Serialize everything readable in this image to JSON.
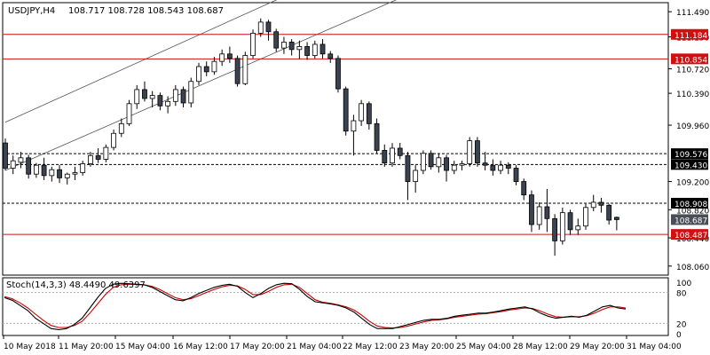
{
  "header": {
    "symbol": "USDJPY,H4",
    "ohlc": "108.717 108.728 108.543 108.687"
  },
  "colors": {
    "background": "#ffffff",
    "axis": "#000000",
    "bull_candle": "#ffffff",
    "bear_candle": "#3c4350",
    "resistance_line": "#d01010",
    "level_label_red": "#d01010",
    "level_label_black": "#000000",
    "current_price_label": "#4a4f57",
    "channel": "#555555",
    "stoch_main": "#000000",
    "stoch_signal": "#cc0000"
  },
  "main_axis": {
    "ticks": [
      "111.490",
      "111.150",
      "110.720",
      "110.390",
      "109.960",
      "109.200",
      "108.820",
      "108.440",
      "108.060"
    ]
  },
  "levels": {
    "red": [
      {
        "label": "111.184",
        "value": 111.184
      },
      {
        "label": "110.854",
        "value": 110.854
      },
      {
        "label": "108.487",
        "value": 108.487
      }
    ],
    "dashed": [
      {
        "label": "109.576",
        "value": 109.576
      },
      {
        "label": "109.430",
        "value": 109.43
      },
      {
        "label": "108.908",
        "value": 108.908
      }
    ],
    "current": {
      "label": "108.687",
      "value": 108.687
    }
  },
  "stoch": {
    "title": "Stoch(14,3,3) 48.4490 49.6397",
    "ticks": [
      "100",
      "80",
      "20",
      "0"
    ],
    "levels": [
      80,
      20
    ]
  },
  "time_axis": {
    "labels": [
      "10 May 2018",
      "11 May 20:00",
      "15 May 04:00",
      "16 May 12:00",
      "17 May 20:00",
      "21 May 04:00",
      "22 May 12:00",
      "23 May 20:00",
      "25 May 04:00",
      "28 May 12:00",
      "29 May 20:00",
      "31 May 04:00"
    ]
  },
  "chart_data": {
    "type": "candlestick",
    "symbol": "USDJPY",
    "timeframe": "H4",
    "ylim": [
      107.95,
      111.6
    ],
    "candles": [
      {
        "o": 109.72,
        "h": 109.78,
        "l": 109.35,
        "c": 109.38
      },
      {
        "o": 109.38,
        "h": 109.55,
        "l": 109.3,
        "c": 109.48
      },
      {
        "o": 109.46,
        "h": 109.6,
        "l": 109.38,
        "c": 109.52
      },
      {
        "o": 109.52,
        "h": 109.56,
        "l": 109.24,
        "c": 109.3
      },
      {
        "o": 109.3,
        "h": 109.45,
        "l": 109.25,
        "c": 109.42
      },
      {
        "o": 109.42,
        "h": 109.52,
        "l": 109.22,
        "c": 109.28
      },
      {
        "o": 109.28,
        "h": 109.4,
        "l": 109.2,
        "c": 109.36
      },
      {
        "o": 109.36,
        "h": 109.42,
        "l": 109.18,
        "c": 109.25
      },
      {
        "o": 109.25,
        "h": 109.32,
        "l": 109.16,
        "c": 109.3
      },
      {
        "o": 109.3,
        "h": 109.4,
        "l": 109.22,
        "c": 109.32
      },
      {
        "o": 109.32,
        "h": 109.48,
        "l": 109.28,
        "c": 109.44
      },
      {
        "o": 109.44,
        "h": 109.6,
        "l": 109.4,
        "c": 109.55
      },
      {
        "o": 109.55,
        "h": 109.65,
        "l": 109.45,
        "c": 109.5
      },
      {
        "o": 109.5,
        "h": 109.7,
        "l": 109.46,
        "c": 109.66
      },
      {
        "o": 109.66,
        "h": 109.9,
        "l": 109.62,
        "c": 109.85
      },
      {
        "o": 109.85,
        "h": 110.05,
        "l": 109.8,
        "c": 109.98
      },
      {
        "o": 109.98,
        "h": 110.3,
        "l": 109.95,
        "c": 110.25
      },
      {
        "o": 110.25,
        "h": 110.5,
        "l": 110.18,
        "c": 110.44
      },
      {
        "o": 110.44,
        "h": 110.55,
        "l": 110.28,
        "c": 110.32
      },
      {
        "o": 110.32,
        "h": 110.42,
        "l": 110.2,
        "c": 110.36
      },
      {
        "o": 110.36,
        "h": 110.4,
        "l": 110.16,
        "c": 110.22
      },
      {
        "o": 110.22,
        "h": 110.35,
        "l": 110.12,
        "c": 110.28
      },
      {
        "o": 110.28,
        "h": 110.5,
        "l": 110.22,
        "c": 110.44
      },
      {
        "o": 110.44,
        "h": 110.48,
        "l": 110.2,
        "c": 110.26
      },
      {
        "o": 110.26,
        "h": 110.6,
        "l": 110.2,
        "c": 110.55
      },
      {
        "o": 110.55,
        "h": 110.8,
        "l": 110.5,
        "c": 110.75
      },
      {
        "o": 110.75,
        "h": 110.82,
        "l": 110.62,
        "c": 110.68
      },
      {
        "o": 110.68,
        "h": 110.88,
        "l": 110.64,
        "c": 110.82
      },
      {
        "o": 110.82,
        "h": 110.98,
        "l": 110.76,
        "c": 110.92
      },
      {
        "o": 110.92,
        "h": 111.02,
        "l": 110.8,
        "c": 110.86
      },
      {
        "o": 110.86,
        "h": 110.9,
        "l": 110.48,
        "c": 110.52
      },
      {
        "o": 110.52,
        "h": 110.95,
        "l": 110.5,
        "c": 110.9
      },
      {
        "o": 110.9,
        "h": 111.25,
        "l": 110.86,
        "c": 111.2
      },
      {
        "o": 111.2,
        "h": 111.4,
        "l": 111.15,
        "c": 111.35
      },
      {
        "o": 111.35,
        "h": 111.38,
        "l": 111.1,
        "c": 111.22
      },
      {
        "o": 111.22,
        "h": 111.26,
        "l": 110.95,
        "c": 111.0
      },
      {
        "o": 111.0,
        "h": 111.15,
        "l": 110.92,
        "c": 111.08
      },
      {
        "o": 111.08,
        "h": 111.12,
        "l": 110.9,
        "c": 110.98
      },
      {
        "o": 110.98,
        "h": 111.1,
        "l": 110.85,
        "c": 111.02
      },
      {
        "o": 111.02,
        "h": 111.08,
        "l": 110.84,
        "c": 110.9
      },
      {
        "o": 110.9,
        "h": 111.1,
        "l": 110.86,
        "c": 111.05
      },
      {
        "o": 111.05,
        "h": 111.12,
        "l": 110.86,
        "c": 110.92
      },
      {
        "o": 110.92,
        "h": 110.96,
        "l": 110.8,
        "c": 110.86
      },
      {
        "o": 110.86,
        "h": 110.9,
        "l": 110.4,
        "c": 110.45
      },
      {
        "o": 110.45,
        "h": 110.48,
        "l": 109.82,
        "c": 109.88
      },
      {
        "o": 109.88,
        "h": 110.1,
        "l": 109.55,
        "c": 110.02
      },
      {
        "o": 110.02,
        "h": 110.3,
        "l": 109.95,
        "c": 110.25
      },
      {
        "o": 110.25,
        "h": 110.28,
        "l": 109.9,
        "c": 109.98
      },
      {
        "o": 109.98,
        "h": 110.05,
        "l": 109.58,
        "c": 109.62
      },
      {
        "o": 109.62,
        "h": 109.7,
        "l": 109.4,
        "c": 109.45
      },
      {
        "o": 109.45,
        "h": 109.72,
        "l": 109.4,
        "c": 109.65
      },
      {
        "o": 109.65,
        "h": 109.72,
        "l": 109.5,
        "c": 109.55
      },
      {
        "o": 109.55,
        "h": 109.6,
        "l": 108.95,
        "c": 109.2
      },
      {
        "o": 109.2,
        "h": 109.42,
        "l": 109.05,
        "c": 109.35
      },
      {
        "o": 109.35,
        "h": 109.62,
        "l": 109.3,
        "c": 109.58
      },
      {
        "o": 109.58,
        "h": 109.62,
        "l": 109.36,
        "c": 109.4
      },
      {
        "o": 109.4,
        "h": 109.58,
        "l": 109.32,
        "c": 109.52
      },
      {
        "o": 109.52,
        "h": 109.56,
        "l": 109.2,
        "c": 109.35
      },
      {
        "o": 109.35,
        "h": 109.48,
        "l": 109.3,
        "c": 109.42
      },
      {
        "o": 109.42,
        "h": 109.48,
        "l": 109.35,
        "c": 109.44
      },
      {
        "o": 109.44,
        "h": 109.8,
        "l": 109.4,
        "c": 109.75
      },
      {
        "o": 109.75,
        "h": 109.8,
        "l": 109.4,
        "c": 109.45
      },
      {
        "o": 109.45,
        "h": 109.6,
        "l": 109.35,
        "c": 109.42
      },
      {
        "o": 109.42,
        "h": 109.5,
        "l": 109.28,
        "c": 109.35
      },
      {
        "o": 109.35,
        "h": 109.48,
        "l": 109.3,
        "c": 109.42
      },
      {
        "o": 109.42,
        "h": 109.46,
        "l": 109.3,
        "c": 109.38
      },
      {
        "o": 109.38,
        "h": 109.42,
        "l": 109.15,
        "c": 109.2
      },
      {
        "o": 109.2,
        "h": 109.24,
        "l": 108.95,
        "c": 109.02
      },
      {
        "o": 109.02,
        "h": 109.08,
        "l": 108.52,
        "c": 108.62
      },
      {
        "o": 108.62,
        "h": 108.92,
        "l": 108.55,
        "c": 108.86
      },
      {
        "o": 108.86,
        "h": 109.1,
        "l": 108.52,
        "c": 108.7
      },
      {
        "o": 108.7,
        "h": 108.76,
        "l": 108.2,
        "c": 108.4
      },
      {
        "o": 108.4,
        "h": 108.85,
        "l": 108.35,
        "c": 108.78
      },
      {
        "o": 108.78,
        "h": 108.82,
        "l": 108.48,
        "c": 108.55
      },
      {
        "o": 108.55,
        "h": 108.7,
        "l": 108.48,
        "c": 108.6
      },
      {
        "o": 108.6,
        "h": 108.9,
        "l": 108.55,
        "c": 108.85
      },
      {
        "o": 108.85,
        "h": 109.02,
        "l": 108.8,
        "c": 108.92
      },
      {
        "o": 108.92,
        "h": 108.98,
        "l": 108.78,
        "c": 108.88
      },
      {
        "o": 108.88,
        "h": 108.9,
        "l": 108.62,
        "c": 108.68
      },
      {
        "o": 108.717,
        "h": 108.728,
        "l": 108.543,
        "c": 108.687
      }
    ],
    "channel": {
      "upper": [
        {
          "i": 0,
          "p": 110.0
        },
        {
          "i": 68,
          "p": 113.2
        }
      ],
      "lower": [
        {
          "i": 0,
          "p": 109.35
        },
        {
          "i": 56,
          "p": 111.9
        }
      ]
    },
    "stochastic": {
      "main": [
        70,
        65,
        55,
        45,
        30,
        20,
        10,
        8,
        10,
        18,
        30,
        50,
        70,
        88,
        96,
        98,
        97,
        96,
        95,
        90,
        82,
        74,
        66,
        64,
        70,
        78,
        84,
        90,
        94,
        96,
        92,
        80,
        70,
        78,
        88,
        95,
        98,
        97,
        86,
        72,
        62,
        60,
        58,
        55,
        50,
        42,
        30,
        18,
        10,
        10,
        10,
        14,
        18,
        22,
        26,
        28,
        28,
        30,
        34,
        36,
        38,
        40,
        40,
        42,
        45,
        48,
        50,
        52,
        48,
        40,
        34,
        30,
        32,
        34,
        32,
        36,
        44,
        52,
        55,
        50,
        48
      ],
      "signal": [
        72,
        68,
        60,
        50,
        38,
        26,
        16,
        12,
        12,
        16,
        24,
        40,
        58,
        76,
        90,
        95,
        96,
        96,
        95,
        92,
        86,
        78,
        70,
        66,
        68,
        74,
        80,
        86,
        91,
        94,
        93,
        86,
        76,
        76,
        82,
        90,
        95,
        96,
        90,
        78,
        66,
        61,
        59,
        56,
        52,
        46,
        36,
        24,
        15,
        12,
        11,
        12,
        15,
        19,
        23,
        26,
        27,
        29,
        32,
        34,
        36,
        38,
        39,
        41,
        43,
        46,
        48,
        50,
        49,
        44,
        38,
        33,
        32,
        33,
        33,
        35,
        40,
        47,
        52,
        52,
        50
      ]
    }
  }
}
